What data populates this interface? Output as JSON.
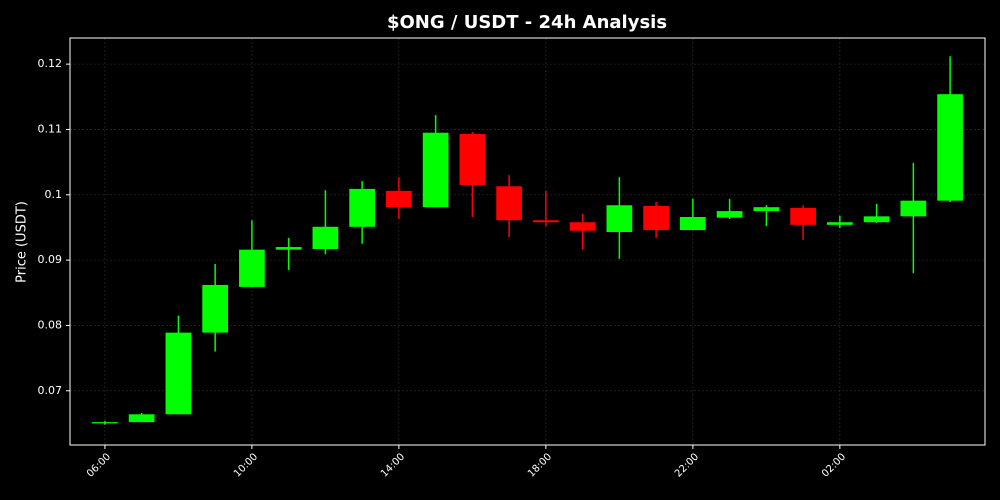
{
  "chart_data": {
    "type": "candlestick",
    "title": "$ONG / USDT - 24h Analysis",
    "y_label": "Price (USDT)",
    "categories": [
      "06:00",
      null,
      null,
      null,
      "10:00",
      null,
      null,
      null,
      "14:00",
      null,
      null,
      null,
      "18:00",
      null,
      null,
      null,
      "22:00",
      null,
      null,
      null,
      "02:00",
      null,
      null,
      null
    ],
    "open": [
      0.065,
      0.0652,
      0.0664,
      0.0789,
      0.0859,
      0.0916,
      0.0917,
      0.0951,
      0.1006,
      0.0981,
      0.1093,
      0.1013,
      0.0961,
      0.0958,
      0.0943,
      0.0983,
      0.0946,
      0.0965,
      0.0975,
      0.098,
      0.0954,
      0.0958,
      0.0967,
      0.0991
    ],
    "high": [
      0.0654,
      0.0666,
      0.0815,
      0.0894,
      0.0961,
      0.0934,
      0.1007,
      0.1021,
      0.1027,
      0.1122,
      0.1096,
      0.103,
      0.1006,
      0.0971,
      0.1027,
      0.0989,
      0.0994,
      0.0994,
      0.0984,
      0.0984,
      0.0968,
      0.0986,
      0.1049,
      0.1212
    ],
    "low": [
      0.0648,
      0.0652,
      0.0664,
      0.076,
      0.0859,
      0.0885,
      0.0909,
      0.0925,
      0.0963,
      0.0981,
      0.0966,
      0.0935,
      0.0952,
      0.0916,
      0.0902,
      0.0934,
      0.0946,
      0.0963,
      0.0952,
      0.0931,
      0.0949,
      0.0957,
      0.088,
      0.0989
    ],
    "close": [
      0.0652,
      0.0664,
      0.0789,
      0.0862,
      0.0916,
      0.092,
      0.0951,
      0.1009,
      0.0981,
      0.1095,
      0.1015,
      0.0961,
      0.0958,
      0.0945,
      0.0984,
      0.0946,
      0.0966,
      0.0975,
      0.0981,
      0.0954,
      0.0958,
      0.0967,
      0.0991,
      0.1154
    ],
    "up_color": "#00ff00",
    "down_color": "#ff0000",
    "ylim": [
      0.0617,
      0.124
    ],
    "yticks": [
      0.07,
      0.08,
      0.09,
      0.1,
      0.11,
      0.12
    ],
    "grid": true
  }
}
